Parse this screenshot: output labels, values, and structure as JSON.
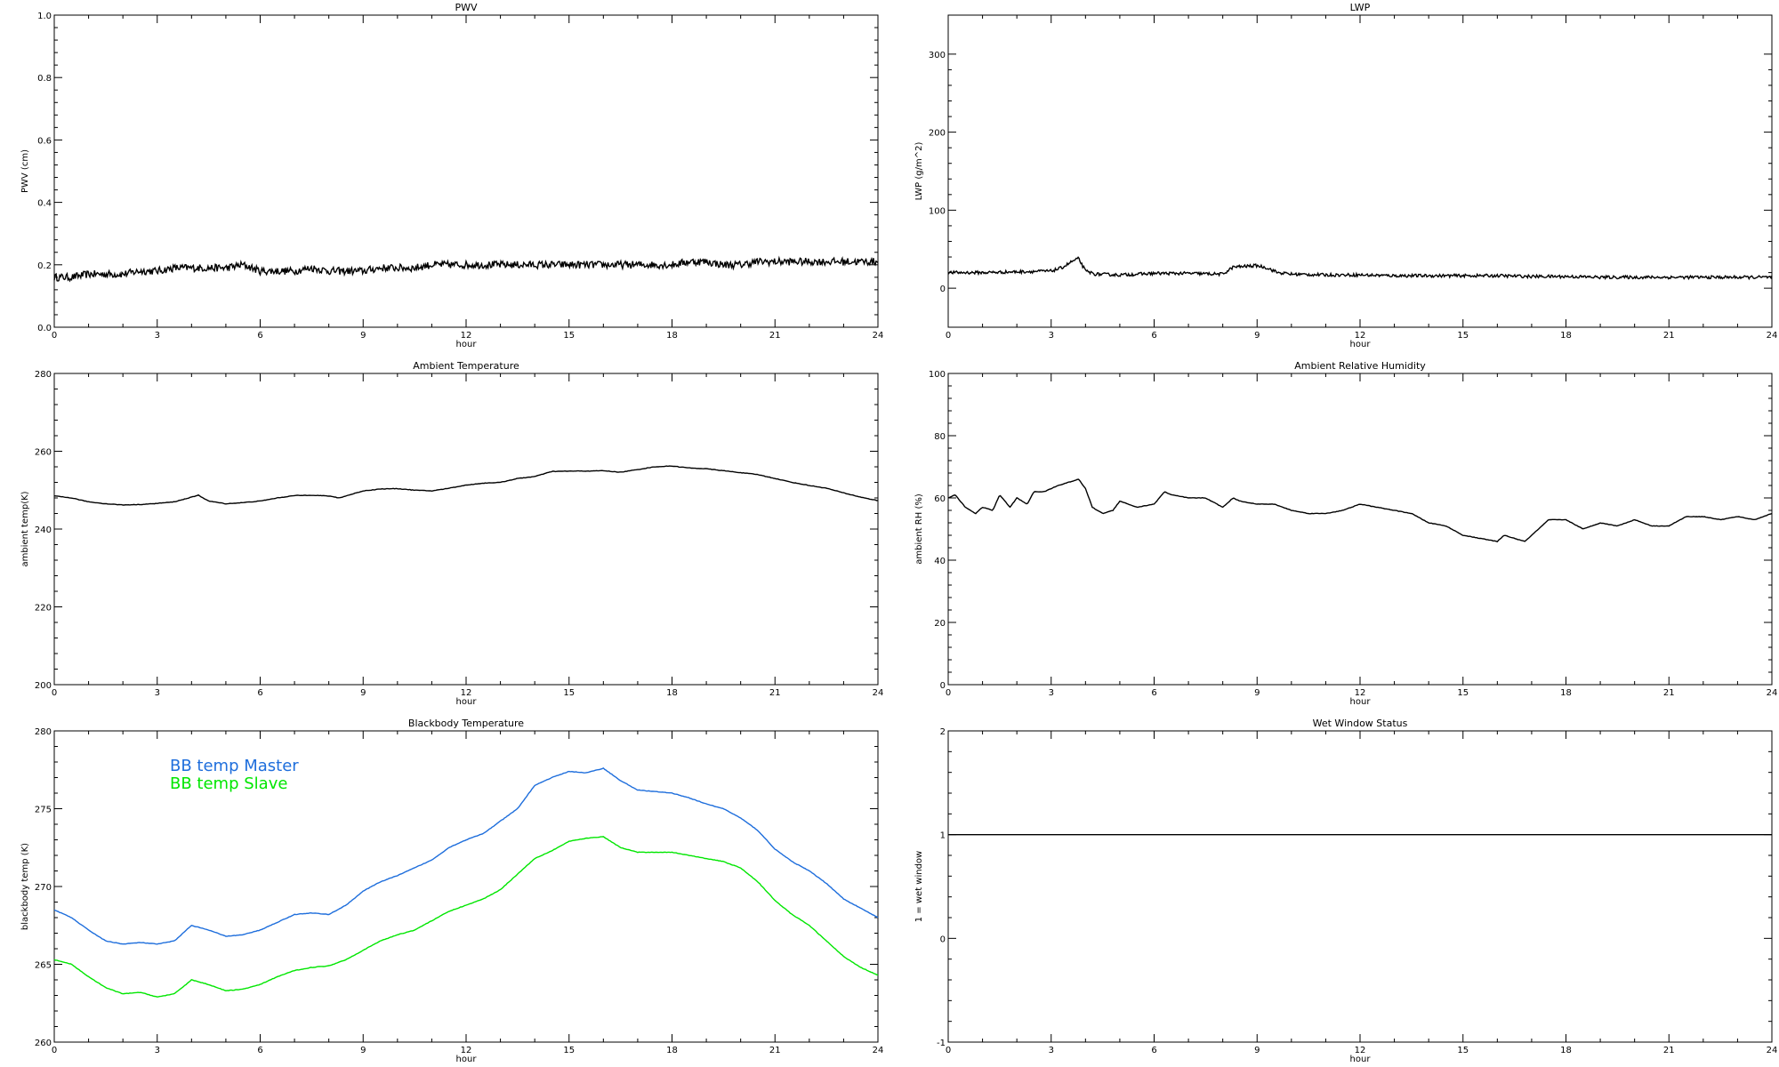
{
  "chart_data": [
    {
      "type": "line",
      "title": "PWV",
      "xlabel": "hour",
      "ylabel": "PWV (cm)",
      "xlim": [
        0,
        24
      ],
      "ylim": [
        0.0,
        1.0
      ],
      "xticks": [
        "0",
        "3",
        "6",
        "9",
        "12",
        "15",
        "18",
        "21",
        "24"
      ],
      "yticks": [
        "0.0",
        "0.2",
        "0.4",
        "0.6",
        "0.8",
        "1.0"
      ],
      "noise": 0.012,
      "series": [
        {
          "color": "#000000",
          "x": [
            0,
            0.5,
            1,
            1.5,
            2,
            2.5,
            3,
            3.5,
            4,
            4.5,
            5,
            5.5,
            6,
            6.5,
            7,
            7.5,
            8,
            8.5,
            9,
            9.5,
            10,
            10.5,
            11,
            11.5,
            12,
            12.5,
            13,
            13.5,
            14,
            14.5,
            15,
            15.5,
            16,
            16.5,
            17,
            17.5,
            18,
            18.5,
            19,
            19.5,
            20,
            20.5,
            21,
            21.5,
            22,
            22.5,
            23,
            23.5,
            24
          ],
          "values": [
            0.16,
            0.16,
            0.17,
            0.17,
            0.17,
            0.18,
            0.18,
            0.19,
            0.19,
            0.19,
            0.19,
            0.2,
            0.18,
            0.18,
            0.18,
            0.19,
            0.18,
            0.18,
            0.18,
            0.19,
            0.19,
            0.19,
            0.2,
            0.2,
            0.2,
            0.2,
            0.2,
            0.2,
            0.2,
            0.2,
            0.2,
            0.2,
            0.2,
            0.2,
            0.2,
            0.2,
            0.2,
            0.21,
            0.21,
            0.2,
            0.2,
            0.21,
            0.21,
            0.21,
            0.21,
            0.21,
            0.21,
            0.21,
            0.21
          ]
        }
      ]
    },
    {
      "type": "line",
      "title": "LWP",
      "xlabel": "hour",
      "ylabel": "LWP (g/m^2)",
      "xlim": [
        0,
        24
      ],
      "ylim": [
        -50,
        350
      ],
      "xticks": [
        "0",
        "3",
        "6",
        "9",
        "12",
        "15",
        "18",
        "21",
        "24"
      ],
      "yticks": [
        "0",
        "100",
        "200",
        "300"
      ],
      "noise": 2,
      "series": [
        {
          "color": "#000000",
          "x": [
            0,
            1,
            2,
            3,
            3.3,
            3.6,
            3.8,
            4,
            4.3,
            5,
            6,
            7,
            8,
            8.3,
            9,
            9.3,
            9.6,
            10,
            11,
            12,
            13,
            14,
            15,
            16,
            17,
            18,
            19,
            20,
            21,
            22,
            23,
            24
          ],
          "values": [
            20,
            20,
            21,
            22,
            26,
            34,
            38,
            22,
            18,
            17,
            19,
            19,
            18,
            27,
            29,
            26,
            20,
            18,
            17,
            17,
            16,
            16,
            16,
            16,
            15,
            15,
            14,
            14,
            14,
            14,
            14,
            14
          ]
        }
      ]
    },
    {
      "type": "line",
      "title": "Ambient Temperature",
      "xlabel": "hour",
      "ylabel": "ambient temp(K)",
      "xlim": [
        0,
        24
      ],
      "ylim": [
        200,
        280
      ],
      "xticks": [
        "0",
        "3",
        "6",
        "9",
        "12",
        "15",
        "18",
        "21",
        "24"
      ],
      "yticks": [
        "200",
        "220",
        "240",
        "260",
        "280"
      ],
      "noise": 0,
      "series": [
        {
          "color": "#000000",
          "x": [
            0,
            0.5,
            1,
            1.5,
            2,
            2.5,
            3,
            3.5,
            4,
            4.2,
            4.5,
            5,
            5.5,
            6,
            6.5,
            7,
            7.5,
            8,
            8.3,
            9,
            9.5,
            10,
            10.5,
            11,
            11.5,
            12,
            12.5,
            13,
            13.5,
            14,
            14.5,
            15,
            15.5,
            16,
            16.5,
            17,
            17.5,
            18,
            18.5,
            19,
            19.5,
            20,
            20.5,
            21,
            21.5,
            22,
            22.5,
            23,
            23.5,
            24
          ],
          "values": [
            248.5,
            248,
            247,
            246.5,
            246.2,
            246.3,
            246.6,
            247,
            248.2,
            248.7,
            247.2,
            246.5,
            246.8,
            247.2,
            248,
            248.6,
            248.7,
            248.5,
            248,
            249.8,
            250.3,
            250.4,
            250,
            249.8,
            250.5,
            251.3,
            251.8,
            252,
            253,
            253.5,
            254.8,
            254.9,
            254.9,
            255,
            254.6,
            255.3,
            256,
            256.2,
            255.7,
            255.5,
            255,
            254.5,
            254,
            253,
            252,
            251.2,
            250.5,
            249.3,
            248.2,
            247.3
          ]
        }
      ]
    },
    {
      "type": "line",
      "title": "Ambient Relative Humidity",
      "xlabel": "hour",
      "ylabel": "ambient RH (%)",
      "xlim": [
        0,
        24
      ],
      "ylim": [
        0,
        100
      ],
      "xticks": [
        "0",
        "3",
        "6",
        "9",
        "12",
        "15",
        "18",
        "21",
        "24"
      ],
      "yticks": [
        "0",
        "20",
        "40",
        "60",
        "80",
        "100"
      ],
      "noise": 0,
      "series": [
        {
          "color": "#000000",
          "x": [
            0,
            0.2,
            0.5,
            0.8,
            1,
            1.3,
            1.5,
            1.8,
            2,
            2.3,
            2.5,
            2.8,
            3,
            3.2,
            3.5,
            3.8,
            4,
            4.2,
            4.5,
            4.8,
            5,
            5.5,
            6,
            6.3,
            6.5,
            7,
            7.5,
            8,
            8.3,
            8.5,
            9,
            9.5,
            10,
            10.5,
            11,
            11.5,
            12,
            12.5,
            13,
            13.5,
            14,
            14.5,
            15,
            15.5,
            16,
            16.2,
            16.5,
            16.8,
            17,
            17.5,
            18,
            18.5,
            19,
            19.5,
            20,
            20.5,
            21,
            21.5,
            22,
            22.5,
            23,
            23.5,
            24
          ],
          "values": [
            60,
            61,
            57,
            55,
            57,
            56,
            61,
            57,
            60,
            58,
            62,
            62,
            63,
            64,
            65,
            66,
            63,
            57,
            55,
            56,
            59,
            57,
            58,
            62,
            61,
            60,
            60,
            57,
            60,
            59,
            58,
            58,
            56,
            55,
            55,
            56,
            58,
            57,
            56,
            55,
            52,
            51,
            48,
            47,
            46,
            48,
            47,
            46,
            48,
            53,
            53,
            50,
            52,
            51,
            53,
            51,
            51,
            54,
            54,
            53,
            54,
            53,
            55
          ]
        }
      ]
    },
    {
      "type": "line",
      "title": "Blackbody Temperature",
      "xlabel": "hour",
      "ylabel": "blackbody temp (K)",
      "xlim": [
        0,
        24
      ],
      "ylim": [
        260,
        280
      ],
      "xticks": [
        "0",
        "3",
        "6",
        "9",
        "12",
        "15",
        "18",
        "21",
        "24"
      ],
      "yticks": [
        "260",
        "265",
        "270",
        "275",
        "280"
      ],
      "noise": 0,
      "legend": "top-left",
      "series": [
        {
          "name": "BB temp Master",
          "color": "#1e6edc",
          "x": [
            0,
            0.5,
            1,
            1.5,
            2,
            2.5,
            3,
            3.5,
            4,
            4.5,
            5,
            5.5,
            6,
            6.5,
            7,
            7.5,
            8,
            8.5,
            9,
            9.5,
            10,
            10.5,
            11,
            11.5,
            12,
            12.5,
            13,
            13.5,
            14,
            14.5,
            15,
            15.5,
            16,
            16.5,
            17,
            17.5,
            18,
            18.5,
            19,
            19.5,
            20,
            20.5,
            21,
            21.5,
            22,
            22.5,
            23,
            23.5,
            24
          ],
          "values": [
            268.5,
            268,
            267.2,
            266.5,
            266.3,
            266.4,
            266.3,
            266.5,
            267.5,
            267.2,
            266.8,
            266.9,
            267.2,
            267.7,
            268.2,
            268.3,
            268.2,
            268.8,
            269.7,
            270.3,
            270.7,
            271.2,
            271.7,
            272.5,
            273,
            273.4,
            274.2,
            275,
            276.5,
            277,
            277.4,
            277.3,
            277.6,
            276.8,
            276.2,
            276.1,
            276,
            275.7,
            275.3,
            275,
            274.4,
            273.6,
            272.4,
            271.6,
            271,
            270.2,
            269.2,
            268.6,
            268
          ]
        },
        {
          "name": "BB temp Slave",
          "color": "#00e600",
          "x": [
            0,
            0.5,
            1,
            1.5,
            2,
            2.5,
            3,
            3.5,
            4,
            4.5,
            5,
            5.5,
            6,
            6.5,
            7,
            7.5,
            8,
            8.5,
            9,
            9.5,
            10,
            10.5,
            11,
            11.5,
            12,
            12.5,
            13,
            13.5,
            14,
            14.5,
            15,
            15.5,
            16,
            16.5,
            17,
            17.5,
            18,
            18.5,
            19,
            19.5,
            20,
            20.5,
            21,
            21.5,
            22,
            22.5,
            23,
            23.5,
            24
          ],
          "values": [
            265.3,
            265,
            264.2,
            263.5,
            263.1,
            263.2,
            262.9,
            263.1,
            264,
            263.7,
            263.3,
            263.4,
            263.7,
            264.2,
            264.6,
            264.8,
            264.9,
            265.3,
            265.9,
            266.5,
            266.9,
            267.2,
            267.8,
            268.4,
            268.8,
            269.2,
            269.8,
            270.8,
            271.8,
            272.3,
            272.9,
            273.1,
            273.2,
            272.5,
            272.2,
            272.2,
            272.2,
            272,
            271.8,
            271.6,
            271.2,
            270.3,
            269.1,
            268.2,
            267.5,
            266.5,
            265.5,
            264.8,
            264.3
          ]
        }
      ]
    },
    {
      "type": "line",
      "title": "Wet Window Status",
      "xlabel": "hour",
      "ylabel": "1 = wet window",
      "xlim": [
        0,
        24
      ],
      "ylim": [
        -1,
        2
      ],
      "xticks": [
        "0",
        "3",
        "6",
        "9",
        "12",
        "15",
        "18",
        "21",
        "24"
      ],
      "yticks": [
        "-1",
        "0",
        "1",
        "2"
      ],
      "noise": 0,
      "series": [
        {
          "color": "#000000",
          "x": [
            0,
            24
          ],
          "values": [
            1,
            1
          ]
        }
      ]
    }
  ]
}
